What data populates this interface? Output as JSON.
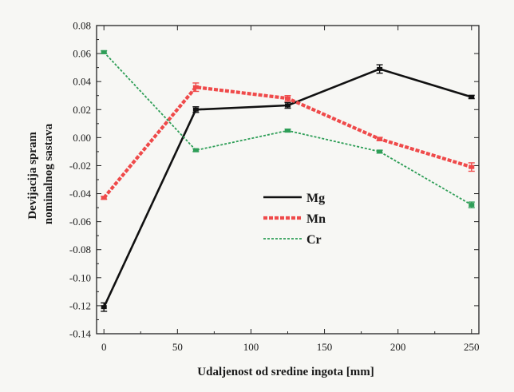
{
  "chart_data": {
    "type": "line",
    "title": "",
    "xlabel": "Udaljenost od sredine ingota [mm]",
    "ylabel_lines": [
      "Devijacija spram",
      "nominalnog sastava"
    ],
    "xlim": [
      -5,
      255
    ],
    "ylim": [
      -0.14,
      0.08
    ],
    "xticks": [
      0,
      50,
      100,
      150,
      200,
      250
    ],
    "yticks": [
      0.08,
      0.06,
      0.04,
      0.02,
      0.0,
      -0.02,
      -0.04,
      -0.06,
      -0.08,
      -0.1,
      -0.12,
      -0.14
    ],
    "ytick_labels": [
      "0.08",
      "0.06",
      "0.04",
      "0.02",
      "0.00",
      "-0.02",
      "-0.04",
      "-0.06",
      "-0.08",
      "-0.10",
      "-0.12",
      "-0.14"
    ],
    "legend_position": "center",
    "series": [
      {
        "name": "Mg",
        "color": "#111111",
        "style": "solid",
        "x": [
          0,
          62.5,
          125,
          187.5,
          250
        ],
        "y": [
          -0.121,
          0.02,
          0.023,
          0.049,
          0.029
        ],
        "err": [
          0.003,
          0.002,
          0.002,
          0.003,
          0.0012
        ]
      },
      {
        "name": "Mn",
        "color": "#ef4a4a",
        "style": "dashed",
        "x": [
          0,
          62.5,
          125,
          187.5,
          250
        ],
        "y": [
          -0.043,
          0.036,
          0.028,
          -0.001,
          -0.021
        ],
        "err": [
          0.001,
          0.003,
          0.002,
          0.0012,
          0.003
        ]
      },
      {
        "name": "Cr",
        "color": "#2e9e57",
        "style": "dotted",
        "x": [
          0,
          62.5,
          125,
          187.5,
          250
        ],
        "y": [
          0.061,
          -0.009,
          0.005,
          -0.01,
          -0.048
        ],
        "err": [
          0.001,
          0.001,
          0.001,
          0.001,
          0.002
        ]
      }
    ]
  }
}
